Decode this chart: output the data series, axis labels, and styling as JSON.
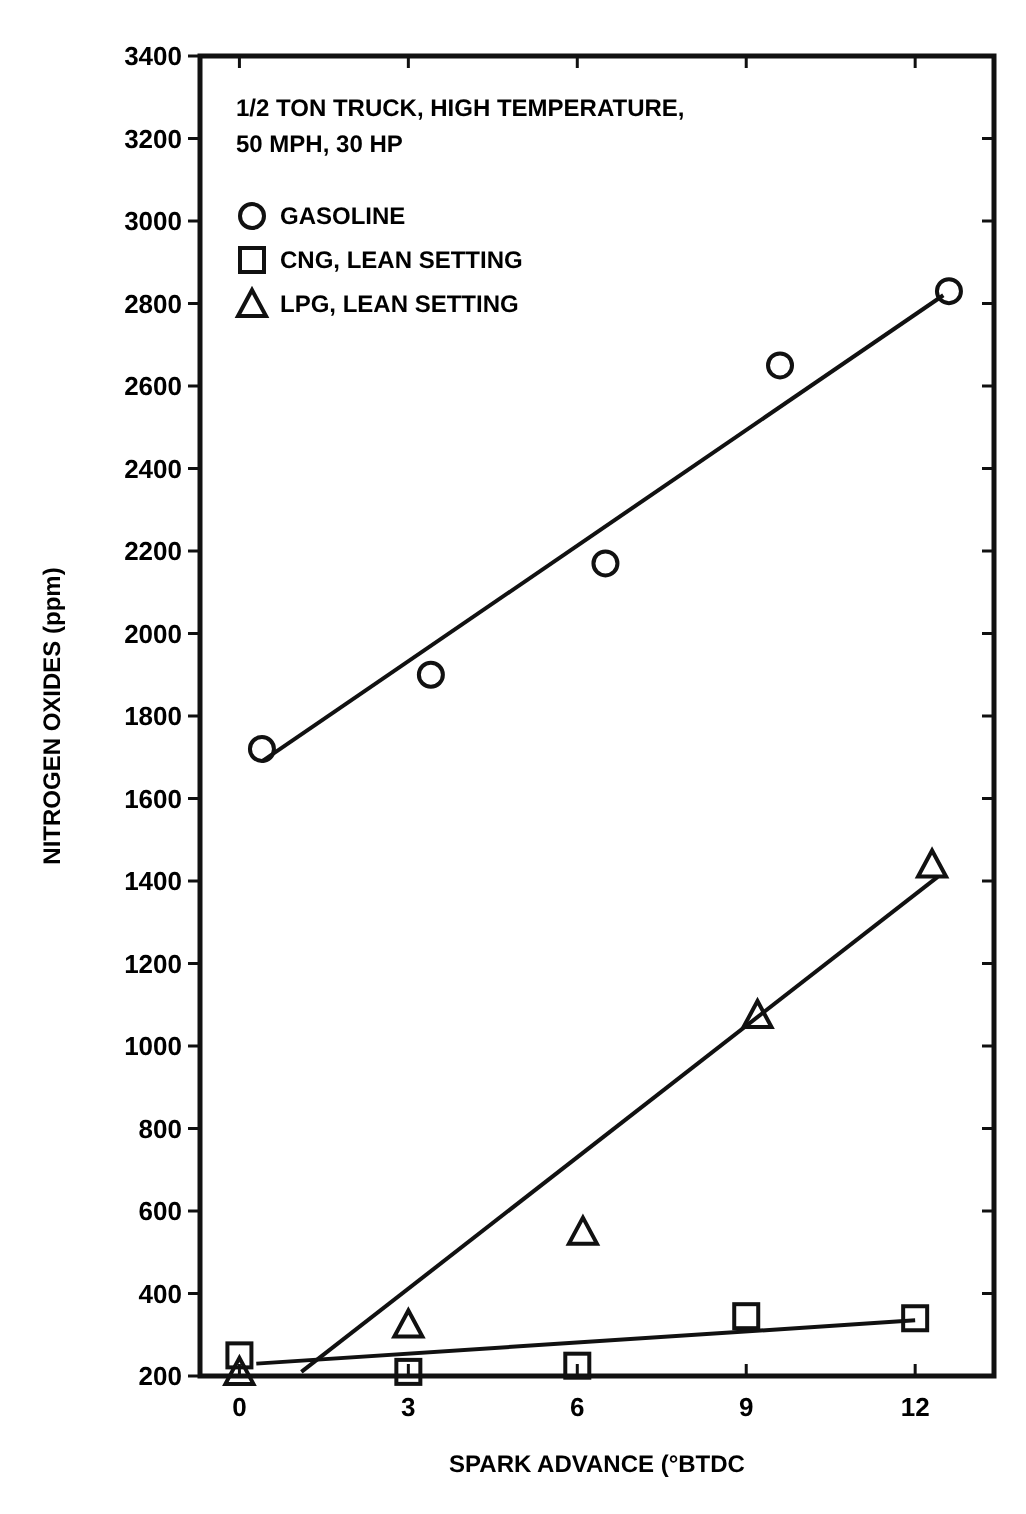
{
  "chart_data": {
    "type": "scatter",
    "xlabel": "SPARK ADVANCE (°BTDC",
    "ylabel": "NITROGEN OXIDES (ppm)",
    "annotations": [
      "1/2 TON TRUCK, HIGH TEMPERATURE,\n50 MPH, 30 HP"
    ],
    "xlim": [
      -0.7,
      13.4
    ],
    "xticks": [
      0,
      3,
      6,
      9,
      12
    ],
    "ylim": [
      200,
      3400
    ],
    "yticks": [
      200,
      400,
      600,
      800,
      1000,
      1200,
      1400,
      1600,
      1800,
      2000,
      2200,
      2400,
      2600,
      2800,
      3000,
      3200,
      3400
    ],
    "grid": false,
    "legend": "top left",
    "series": [
      {
        "name": "GASOLINE",
        "marker": "circle",
        "color": "#111111",
        "x": [
          0.4,
          3.4,
          6.5,
          9.6,
          12.6
        ],
        "values": [
          1720,
          1900,
          2170,
          2650,
          2830
        ]
      },
      {
        "name": "CNG, LEAN SETTING",
        "marker": "square",
        "color": "#111111",
        "x": [
          0,
          3,
          6,
          9,
          12
        ],
        "values": [
          250,
          210,
          225,
          345,
          340
        ]
      },
      {
        "name": "LPG, LEAN SETTING",
        "marker": "triangle",
        "color": "#111111",
        "x": [
          0,
          3,
          6.1,
          9.2,
          12.3
        ],
        "values": [
          210,
          325,
          550,
          1075,
          1440
        ]
      },
      {
        "type": "line",
        "color": "#111111",
        "x": [
          0.4,
          12.5
        ],
        "values": [
          1690,
          2820
        ]
      },
      {
        "type": "line",
        "color": "#111111",
        "x": [
          0.3,
          12
        ],
        "values": [
          230,
          335
        ]
      },
      {
        "type": "line",
        "color": "#111111",
        "x": [
          1.1,
          12.4
        ],
        "values": [
          210,
          1410
        ]
      }
    ]
  }
}
